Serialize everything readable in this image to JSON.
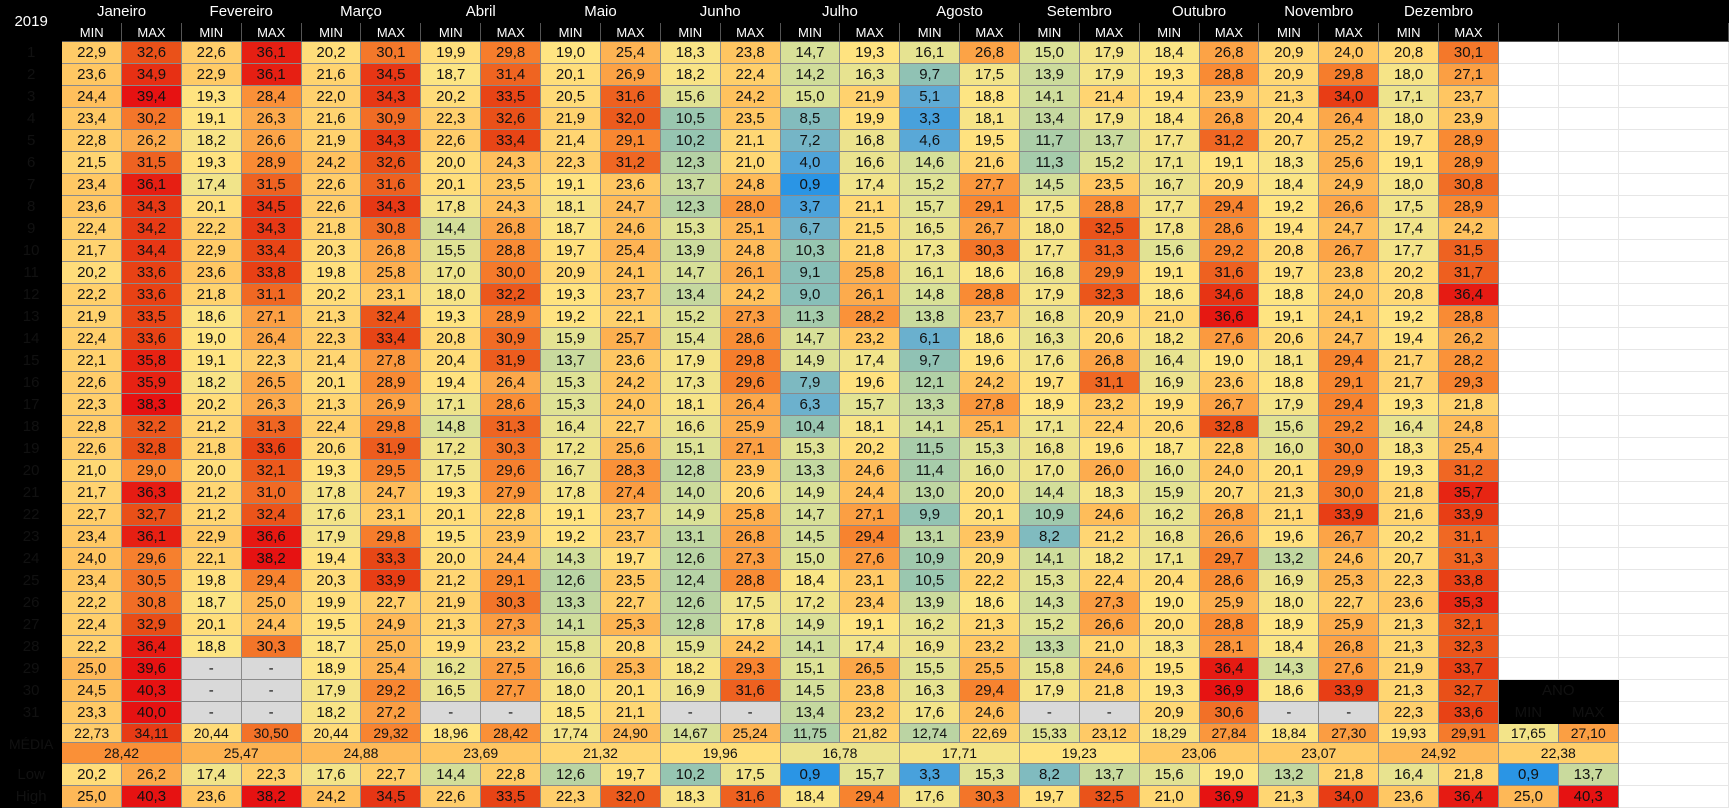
{
  "year": "2019",
  "headers": {
    "min": "MIN",
    "max": "MAX"
  },
  "months": [
    "Janeiro",
    "Fevereiro",
    "Março",
    "Abril",
    "Maio",
    "Junho",
    "Julho",
    "Agosto",
    "Setembro",
    "Outubro",
    "Novembro",
    "Dezembro"
  ],
  "rows": [
    {
      "day": "1",
      "values": [
        "22,9",
        "32,6",
        "22,6",
        "36,1",
        "20,2",
        "30,1",
        "19,9",
        "29,8",
        "19,0",
        "25,4",
        "18,3",
        "23,8",
        "14,7",
        "19,3",
        "16,1",
        "26,8",
        "15,0",
        "17,9",
        "18,4",
        "26,8",
        "20,9",
        "24,0",
        "20,8",
        "30,1"
      ]
    },
    {
      "day": "2",
      "values": [
        "23,6",
        "34,9",
        "22,9",
        "36,1",
        "21,6",
        "34,5",
        "18,7",
        "31,4",
        "20,1",
        "26,9",
        "18,2",
        "22,4",
        "14,2",
        "16,3",
        "9,7",
        "17,5",
        "13,9",
        "17,9",
        "19,3",
        "28,8",
        "20,9",
        "29,8",
        "18,0",
        "27,1"
      ]
    },
    {
      "day": "3",
      "values": [
        "24,4",
        "39,4",
        "19,3",
        "28,4",
        "22,0",
        "34,3",
        "20,2",
        "33,5",
        "20,5",
        "31,6",
        "15,6",
        "24,2",
        "15,0",
        "21,9",
        "5,1",
        "18,8",
        "14,1",
        "21,4",
        "19,4",
        "23,9",
        "21,3",
        "34,0",
        "17,1",
        "23,7"
      ]
    },
    {
      "day": "4",
      "values": [
        "23,4",
        "30,2",
        "19,1",
        "26,3",
        "21,6",
        "30,9",
        "22,3",
        "32,6",
        "21,9",
        "32,0",
        "10,5",
        "23,5",
        "8,5",
        "19,9",
        "3,3",
        "18,1",
        "13,4",
        "17,9",
        "18,4",
        "26,8",
        "20,4",
        "26,4",
        "18,0",
        "23,9"
      ]
    },
    {
      "day": "5",
      "values": [
        "22,8",
        "26,2",
        "18,2",
        "26,6",
        "21,9",
        "34,3",
        "22,6",
        "33,4",
        "21,4",
        "29,1",
        "10,2",
        "21,1",
        "7,2",
        "16,8",
        "4,6",
        "19,5",
        "11,7",
        "13,7",
        "17,7",
        "31,2",
        "20,7",
        "25,2",
        "19,7",
        "28,9"
      ]
    },
    {
      "day": "6",
      "values": [
        "21,5",
        "31,5",
        "19,3",
        "28,9",
        "24,2",
        "32,6",
        "20,0",
        "24,3",
        "22,3",
        "31,2",
        "12,3",
        "21,0",
        "4,0",
        "16,6",
        "14,6",
        "21,6",
        "11,3",
        "15,2",
        "17,1",
        "19,1",
        "18,3",
        "25,6",
        "19,1",
        "28,9"
      ]
    },
    {
      "day": "7",
      "values": [
        "23,4",
        "36,1",
        "17,4",
        "31,5",
        "22,6",
        "31,6",
        "20,1",
        "23,5",
        "19,1",
        "23,6",
        "13,7",
        "24,8",
        "0,9",
        "17,4",
        "15,2",
        "27,7",
        "14,5",
        "23,5",
        "16,7",
        "20,9",
        "18,4",
        "24,9",
        "18,0",
        "30,8"
      ]
    },
    {
      "day": "8",
      "values": [
        "23,6",
        "34,3",
        "20,1",
        "34,5",
        "22,6",
        "34,3",
        "17,8",
        "24,3",
        "18,1",
        "24,7",
        "12,3",
        "28,0",
        "3,7",
        "21,1",
        "15,7",
        "29,1",
        "17,5",
        "28,8",
        "17,7",
        "29,4",
        "19,2",
        "26,6",
        "17,5",
        "28,9"
      ]
    },
    {
      "day": "9",
      "values": [
        "22,4",
        "34,2",
        "22,2",
        "34,3",
        "21,8",
        "30,8",
        "14,4",
        "26,8",
        "18,7",
        "24,6",
        "15,3",
        "25,1",
        "6,7",
        "21,5",
        "16,5",
        "26,7",
        "18,0",
        "32,5",
        "17,8",
        "28,6",
        "19,4",
        "24,7",
        "17,4",
        "24,2"
      ]
    },
    {
      "day": "10",
      "values": [
        "21,7",
        "34,4",
        "22,9",
        "33,4",
        "20,3",
        "26,8",
        "15,5",
        "28,8",
        "19,7",
        "25,4",
        "13,9",
        "24,8",
        "10,3",
        "21,8",
        "17,3",
        "30,3",
        "17,7",
        "31,3",
        "15,6",
        "29,2",
        "20,8",
        "26,7",
        "17,7",
        "31,5"
      ]
    },
    {
      "day": "11",
      "values": [
        "20,2",
        "33,6",
        "23,6",
        "33,8",
        "19,8",
        "25,8",
        "17,0",
        "30,0",
        "20,9",
        "24,1",
        "14,7",
        "26,1",
        "9,1",
        "25,8",
        "16,1",
        "18,6",
        "16,8",
        "29,9",
        "19,1",
        "31,6",
        "19,7",
        "23,8",
        "20,2",
        "31,7"
      ]
    },
    {
      "day": "12",
      "values": [
        "22,2",
        "33,6",
        "21,8",
        "31,1",
        "20,2",
        "23,1",
        "18,0",
        "32,2",
        "19,3",
        "23,7",
        "13,4",
        "24,2",
        "9,0",
        "26,1",
        "14,8",
        "28,8",
        "17,9",
        "32,3",
        "18,6",
        "34,6",
        "18,8",
        "24,0",
        "20,8",
        "36,4"
      ]
    },
    {
      "day": "13",
      "values": [
        "21,9",
        "33,5",
        "18,6",
        "27,1",
        "21,3",
        "32,4",
        "19,3",
        "28,9",
        "19,2",
        "22,1",
        "15,2",
        "27,3",
        "11,3",
        "28,2",
        "13,8",
        "23,7",
        "16,8",
        "20,9",
        "21,0",
        "36,6",
        "19,1",
        "24,1",
        "19,2",
        "28,8"
      ]
    },
    {
      "day": "14",
      "values": [
        "22,4",
        "33,6",
        "19,0",
        "26,4",
        "22,3",
        "33,4",
        "20,8",
        "30,9",
        "15,9",
        "25,7",
        "15,4",
        "28,6",
        "14,7",
        "23,2",
        "6,1",
        "18,6",
        "16,3",
        "20,6",
        "18,2",
        "27,6",
        "20,6",
        "24,7",
        "19,4",
        "26,2"
      ]
    },
    {
      "day": "15",
      "values": [
        "22,1",
        "35,8",
        "19,1",
        "22,3",
        "21,4",
        "27,8",
        "20,4",
        "31,9",
        "13,7",
        "23,6",
        "17,9",
        "29,8",
        "14,9",
        "17,4",
        "9,7",
        "19,6",
        "17,6",
        "26,8",
        "16,4",
        "19,0",
        "18,1",
        "29,4",
        "21,7",
        "28,2"
      ]
    },
    {
      "day": "16",
      "values": [
        "22,6",
        "35,9",
        "18,2",
        "26,5",
        "20,1",
        "28,9",
        "19,4",
        "26,4",
        "15,3",
        "24,2",
        "17,3",
        "29,6",
        "7,9",
        "19,6",
        "12,1",
        "24,2",
        "19,7",
        "31,1",
        "16,9",
        "23,6",
        "18,8",
        "29,1",
        "21,7",
        "29,3"
      ]
    },
    {
      "day": "17",
      "values": [
        "22,3",
        "38,3",
        "20,2",
        "26,3",
        "21,3",
        "26,9",
        "17,1",
        "28,6",
        "15,3",
        "24,0",
        "18,1",
        "26,4",
        "6,3",
        "15,7",
        "13,3",
        "27,8",
        "18,9",
        "23,2",
        "19,9",
        "26,7",
        "17,9",
        "29,4",
        "19,3",
        "21,8"
      ]
    },
    {
      "day": "18",
      "values": [
        "22,8",
        "32,2",
        "21,2",
        "31,3",
        "22,4",
        "29,8",
        "14,8",
        "31,3",
        "16,4",
        "22,7",
        "16,6",
        "25,9",
        "10,4",
        "18,1",
        "14,1",
        "25,1",
        "17,1",
        "22,4",
        "20,6",
        "32,8",
        "15,6",
        "29,2",
        "16,4",
        "24,8"
      ]
    },
    {
      "day": "19",
      "values": [
        "22,6",
        "32,8",
        "21,8",
        "33,6",
        "20,6",
        "31,9",
        "17,2",
        "30,3",
        "17,2",
        "25,6",
        "15,1",
        "27,1",
        "15,3",
        "20,2",
        "11,5",
        "15,3",
        "16,8",
        "19,6",
        "18,7",
        "22,8",
        "16,0",
        "30,0",
        "18,3",
        "25,4"
      ]
    },
    {
      "day": "20",
      "values": [
        "21,0",
        "29,0",
        "20,0",
        "32,1",
        "19,3",
        "29,5",
        "17,5",
        "29,6",
        "16,7",
        "28,3",
        "12,8",
        "23,9",
        "13,3",
        "24,6",
        "11,4",
        "16,0",
        "17,0",
        "26,0",
        "16,0",
        "24,0",
        "20,1",
        "29,9",
        "19,3",
        "31,2"
      ]
    },
    {
      "day": "21",
      "values": [
        "21,7",
        "36,3",
        "21,2",
        "31,0",
        "17,8",
        "24,7",
        "19,3",
        "27,9",
        "17,8",
        "27,4",
        "14,0",
        "20,6",
        "14,9",
        "24,4",
        "13,0",
        "20,0",
        "14,4",
        "18,3",
        "15,9",
        "20,7",
        "21,3",
        "30,0",
        "21,8",
        "35,7"
      ]
    },
    {
      "day": "22",
      "values": [
        "22,7",
        "32,7",
        "21,2",
        "32,4",
        "17,6",
        "23,1",
        "20,1",
        "22,8",
        "19,1",
        "23,7",
        "14,9",
        "25,8",
        "14,7",
        "27,1",
        "9,9",
        "20,1",
        "10,9",
        "24,6",
        "16,2",
        "26,8",
        "21,1",
        "33,9",
        "21,6",
        "33,9"
      ]
    },
    {
      "day": "23",
      "values": [
        "23,4",
        "36,1",
        "22,9",
        "36,6",
        "17,9",
        "29,8",
        "19,5",
        "23,9",
        "19,2",
        "23,7",
        "13,1",
        "26,8",
        "14,5",
        "29,4",
        "13,1",
        "23,9",
        "8,2",
        "21,2",
        "16,8",
        "26,6",
        "19,6",
        "26,7",
        "20,2",
        "31,1"
      ]
    },
    {
      "day": "24",
      "values": [
        "24,0",
        "29,6",
        "22,1",
        "38,2",
        "19,4",
        "33,3",
        "20,0",
        "24,4",
        "14,3",
        "19,7",
        "12,6",
        "27,3",
        "15,0",
        "27,6",
        "10,9",
        "20,9",
        "14,1",
        "18,2",
        "17,1",
        "29,7",
        "13,2",
        "24,6",
        "20,7",
        "31,3"
      ]
    },
    {
      "day": "25",
      "values": [
        "23,4",
        "30,5",
        "19,8",
        "29,4",
        "20,3",
        "33,9",
        "21,2",
        "29,1",
        "12,6",
        "23,5",
        "12,4",
        "28,8",
        "18,4",
        "23,1",
        "10,5",
        "22,2",
        "15,3",
        "22,4",
        "20,4",
        "28,6",
        "16,9",
        "25,3",
        "22,3",
        "33,8"
      ]
    },
    {
      "day": "26",
      "values": [
        "22,2",
        "30,8",
        "18,7",
        "25,0",
        "19,9",
        "22,7",
        "21,9",
        "30,3",
        "13,3",
        "22,7",
        "12,6",
        "17,5",
        "17,2",
        "23,4",
        "13,9",
        "18,6",
        "14,3",
        "27,3",
        "19,0",
        "25,9",
        "18,0",
        "22,7",
        "23,6",
        "35,3"
      ]
    },
    {
      "day": "27",
      "values": [
        "22,4",
        "32,9",
        "20,1",
        "24,4",
        "19,5",
        "24,9",
        "21,3",
        "27,3",
        "14,1",
        "25,3",
        "12,8",
        "17,8",
        "14,9",
        "19,1",
        "16,2",
        "21,3",
        "15,2",
        "26,6",
        "20,0",
        "28,8",
        "18,9",
        "25,9",
        "21,3",
        "32,1"
      ]
    },
    {
      "day": "28",
      "values": [
        "22,2",
        "36,4",
        "18,8",
        "30,3",
        "18,7",
        "25,0",
        "19,9",
        "23,2",
        "15,8",
        "20,8",
        "15,9",
        "24,2",
        "14,1",
        "17,4",
        "16,9",
        "23,2",
        "13,3",
        "21,0",
        "18,3",
        "28,1",
        "18,4",
        "26,8",
        "21,3",
        "32,3"
      ]
    },
    {
      "day": "29",
      "values": [
        "25,0",
        "39,6",
        "-",
        "-",
        "18,9",
        "25,4",
        "16,2",
        "27,5",
        "16,6",
        "25,3",
        "18,2",
        "29,3",
        "15,1",
        "26,5",
        "15,5",
        "25,5",
        "15,8",
        "24,6",
        "19,5",
        "36,4",
        "14,3",
        "27,6",
        "21,9",
        "33,7"
      ]
    },
    {
      "day": "30",
      "values": [
        "24,5",
        "40,3",
        "-",
        "-",
        "17,9",
        "29,2",
        "16,5",
        "27,7",
        "18,0",
        "20,1",
        "16,9",
        "31,6",
        "14,5",
        "23,8",
        "16,3",
        "29,4",
        "17,9",
        "21,8",
        "19,3",
        "36,9",
        "18,6",
        "33,9",
        "21,3",
        "32,7"
      ]
    },
    {
      "day": "31",
      "values": [
        "23,3",
        "40,0",
        "-",
        "-",
        "18,2",
        "27,2",
        "-",
        "-",
        "18,5",
        "21,1",
        "-",
        "-",
        "13,4",
        "23,2",
        "17,6",
        "24,6",
        "-",
        "-",
        "20,9",
        "30,6",
        "-",
        "-",
        "22,3",
        "33,6"
      ]
    }
  ],
  "annual": {
    "label": "ANO",
    "min_label": "MIN",
    "max_label": "MAX"
  },
  "media": {
    "label": "MÉDIA",
    "values": [
      "22,73",
      "34,11",
      "20,44",
      "30,50",
      "20,44",
      "29,32",
      "18,96",
      "28,42",
      "17,74",
      "24,90",
      "14,67",
      "25,24",
      "11,75",
      "21,82",
      "12,74",
      "22,69",
      "15,33",
      "23,12",
      "18,29",
      "27,84",
      "18,84",
      "27,30",
      "19,93",
      "29,91",
      "17,65",
      "27,10"
    ],
    "means": [
      "28,42",
      "25,47",
      "24,88",
      "23,69",
      "21,32",
      "19,96",
      "16,78",
      "17,71",
      "19,23",
      "23,06",
      "23,07",
      "24,92",
      "22,38"
    ]
  },
  "low": {
    "label": "Low",
    "values": [
      "20,2",
      "26,2",
      "17,4",
      "22,3",
      "17,6",
      "22,7",
      "14,4",
      "22,8",
      "12,6",
      "19,7",
      "10,2",
      "17,5",
      "0,9",
      "15,7",
      "3,3",
      "15,3",
      "8,2",
      "13,7",
      "15,6",
      "19,0",
      "13,2",
      "21,8",
      "16,4",
      "21,8",
      "0,9",
      "13,7"
    ]
  },
  "high": {
    "label": "High",
    "values": [
      "25,0",
      "40,3",
      "23,6",
      "38,2",
      "24,2",
      "34,5",
      "22,6",
      "33,5",
      "22,3",
      "32,0",
      "18,3",
      "31,6",
      "18,4",
      "29,4",
      "17,6",
      "30,3",
      "19,7",
      "32,5",
      "21,0",
      "36,9",
      "21,3",
      "34,0",
      "23,6",
      "36,4",
      "25,0",
      "40,3"
    ]
  }
}
